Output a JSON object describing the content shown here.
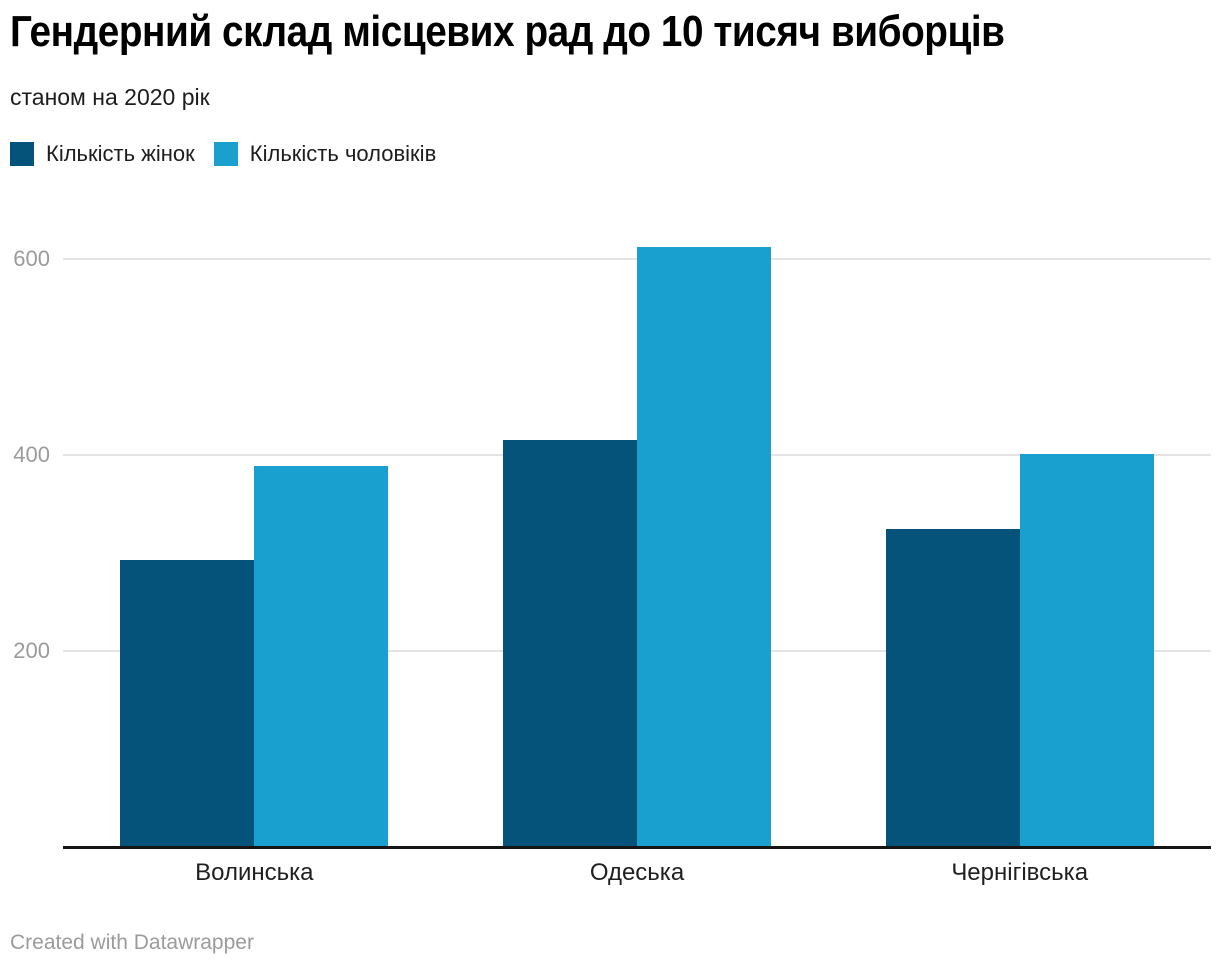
{
  "header": {
    "title": "Гендерний склад місцевих рад до 10 тисяч виборців",
    "subtitle": "станом на 2020 рік"
  },
  "footer": {
    "credit": "Created with Datawrapper"
  },
  "colors": {
    "women": "#05537a",
    "men": "#1aa0ce",
    "grid": "#e4e4e4",
    "axis": "#151515",
    "tick_label": "#9b9b9b"
  },
  "chart_data": {
    "type": "bar",
    "title": "Гендерний склад місцевих рад до 10 тисяч виборців",
    "subtitle": "станом на 2020 рік",
    "categories": [
      "Волинська",
      "Одеська",
      "Чернігівська"
    ],
    "series": [
      {
        "name": "Кількість жінок",
        "color": "#05537a",
        "values": [
          292,
          414,
          323
        ]
      },
      {
        "name": "Кількість чоловіків",
        "color": "#1aa0ce",
        "values": [
          388,
          611,
          400
        ]
      }
    ],
    "xlabel": "",
    "ylabel": "",
    "yticks": [
      200,
      400,
      600
    ],
    "ylim": [
      0,
      630
    ],
    "grid": true,
    "legend_position": "top-left",
    "credit": "Created with Datawrapper"
  }
}
